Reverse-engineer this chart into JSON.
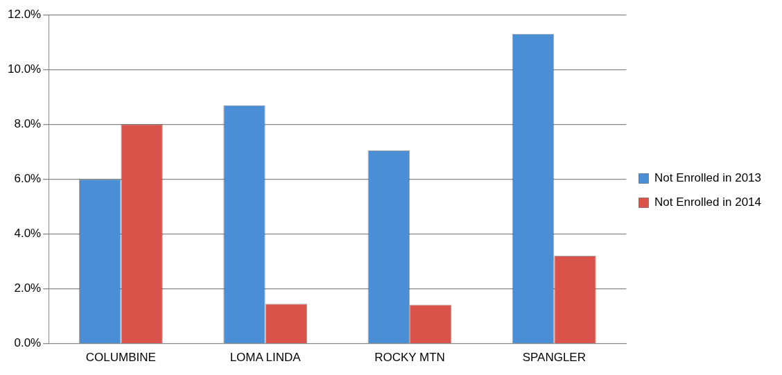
{
  "chart_data": {
    "type": "bar",
    "categories": [
      "COLUMBINE",
      "LOMA LINDA",
      "ROCKY MTN",
      "SPANGLER"
    ],
    "series": [
      {
        "name": "Not Enrolled in 2013",
        "color": "#4a8fd6",
        "values": [
          6.0,
          8.7,
          7.05,
          11.3
        ]
      },
      {
        "name": "Not Enrolled in 2014",
        "color": "#d9534a",
        "values": [
          8.0,
          1.45,
          1.42,
          3.2
        ]
      }
    ],
    "ylim": [
      0,
      12
    ],
    "yticks": [
      {
        "value": 0,
        "label": "0.0%"
      },
      {
        "value": 2,
        "label": "2.0%"
      },
      {
        "value": 4,
        "label": "4.0%"
      },
      {
        "value": 6,
        "label": "6.0%"
      },
      {
        "value": 8,
        "label": "8.0%"
      },
      {
        "value": 10,
        "label": "10.0%"
      },
      {
        "value": 12,
        "label": "12.0%"
      }
    ],
    "grid": "y",
    "legend": "right"
  }
}
